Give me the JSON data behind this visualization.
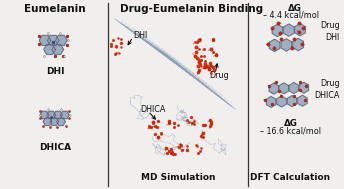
{
  "title": "Drug-Eumelanin Binding",
  "left_title": "Eumelanin",
  "dhi_label": "DHI",
  "dhica_label": "DHICA",
  "md_label": "MD Simulation",
  "dft_label": "DFT Calculation",
  "dg_dhi": "– 4.4 kcal/mol",
  "dg_dhica": "– 16.6 kcal/mol",
  "dg_symbol": "ΔG",
  "drug_label": "Drug",
  "bg_color": "#f0efee",
  "title_fontsize": 7.5,
  "label_fontsize": 6.5,
  "small_fontsize": 5.8,
  "divider_color": "#333333",
  "text_color": "#111111",
  "mol_gray": "#8fa0b8",
  "mol_red": "#cc2200",
  "mol_blue": "#2244aa",
  "mol_white": "#e0e0e0",
  "bond_color": "#555566"
}
